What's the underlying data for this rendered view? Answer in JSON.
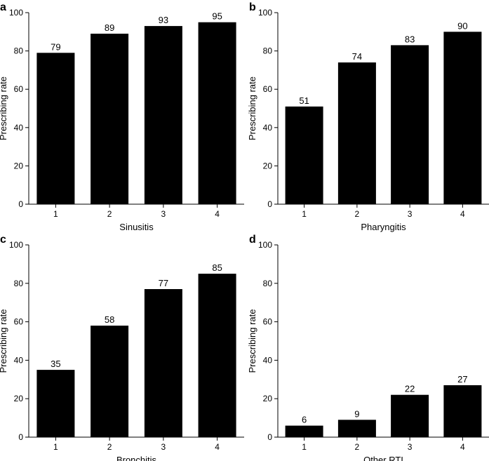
{
  "chart_data": [
    {
      "panel": "a",
      "type": "bar",
      "categories": [
        "1",
        "2",
        "3",
        "4"
      ],
      "values": [
        79,
        89,
        93,
        95
      ],
      "xlabel": "Sinusitis",
      "ylabel": "Prescribing rate",
      "ylim": [
        0,
        100
      ],
      "yticks": [
        0,
        20,
        40,
        60,
        80,
        100
      ],
      "grid": false,
      "bar_color": "#000000"
    },
    {
      "panel": "b",
      "type": "bar",
      "categories": [
        "1",
        "2",
        "3",
        "4"
      ],
      "values": [
        51,
        74,
        83,
        90
      ],
      "xlabel": "Pharyngitis",
      "ylabel": "Prescribing rate",
      "ylim": [
        0,
        100
      ],
      "yticks": [
        0,
        20,
        40,
        60,
        80,
        100
      ],
      "grid": false,
      "bar_color": "#000000"
    },
    {
      "panel": "c",
      "type": "bar",
      "categories": [
        "1",
        "2",
        "3",
        "4"
      ],
      "values": [
        35,
        58,
        77,
        85
      ],
      "xlabel": "Bronchitis",
      "ylabel": "Prescribing rate",
      "ylim": [
        0,
        100
      ],
      "yticks": [
        0,
        20,
        40,
        60,
        80,
        100
      ],
      "grid": false,
      "bar_color": "#000000"
    },
    {
      "panel": "d",
      "type": "bar",
      "categories": [
        "1",
        "2",
        "3",
        "4"
      ],
      "values": [
        6,
        9,
        22,
        27
      ],
      "xlabel": "Other RTI",
      "ylabel": "Prescribing rate",
      "ylim": [
        0,
        100
      ],
      "yticks": [
        0,
        20,
        40,
        60,
        80,
        100
      ],
      "grid": false,
      "bar_color": "#000000"
    }
  ]
}
